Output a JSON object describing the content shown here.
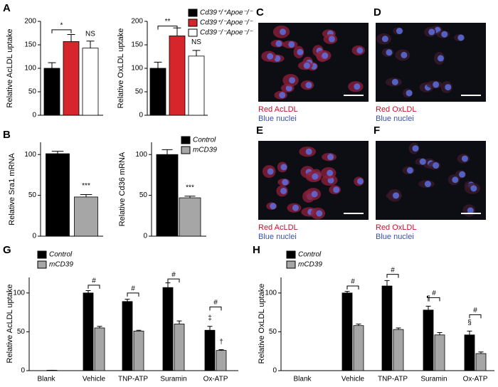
{
  "panel_labels": [
    "A",
    "B",
    "G",
    "H"
  ],
  "images": [
    {
      "label": "C",
      "lines": [
        "Red AcLDL",
        "Blue nuclei"
      ]
    },
    {
      "label": "D",
      "lines": [
        "Red OxLDL",
        "Blue nuclei"
      ]
    },
    {
      "label": "E",
      "lines": [
        "Red AcLDL",
        "Blue nuclei"
      ]
    },
    {
      "label": "F",
      "lines": [
        "Red OxLDL",
        "Blue nuclei"
      ]
    }
  ],
  "chart_data": [
    {
      "type": "bar",
      "ylabel": "Relative AcLDL uptake",
      "categories": [
        null
      ],
      "ylim": [
        0,
        200
      ],
      "yticks": [
        0,
        50,
        100,
        150,
        200
      ],
      "series": [
        {
          "color": "#000000",
          "values": [
            100
          ],
          "errors": [
            12
          ]
        },
        {
          "color": "#d7262b",
          "values": [
            157
          ],
          "errors": [
            15
          ]
        },
        {
          "color": "#ffffff",
          "values": [
            143
          ],
          "errors": [
            15
          ]
        }
      ],
      "annotations": [
        "*",
        "NS"
      ]
    },
    {
      "type": "bar",
      "ylabel": "Relative OxLDL uptake",
      "categories": [
        null
      ],
      "ylim": [
        0,
        200
      ],
      "yticks": [
        0,
        50,
        100,
        150,
        200
      ],
      "series": [
        {
          "name": "Cd39⁺/⁺Apoe⁻/⁻",
          "color": "#000000",
          "values": [
            100
          ],
          "errors": [
            13
          ]
        },
        {
          "name": "Cd39⁺/⁻Apoe⁻/⁻",
          "color": "#d7262b",
          "values": [
            169
          ],
          "errors": [
            17
          ]
        },
        {
          "name": "Cd39⁻/⁻Apoe⁻/⁻",
          "color": "#ffffff",
          "values": [
            126
          ],
          "errors": [
            12
          ]
        }
      ],
      "annotations": [
        "**",
        "NS"
      ]
    },
    {
      "type": "bar",
      "ylabel": "Relative Sra1 mRNA",
      "categories": [
        null
      ],
      "ylim": [
        0,
        115
      ],
      "yticks": [
        0,
        50,
        100
      ],
      "series": [
        {
          "color": "#000000",
          "values": [
            101
          ],
          "errors": [
            3
          ]
        },
        {
          "color": "#a6a6a6",
          "values": [
            48
          ],
          "errors": [
            3
          ]
        }
      ],
      "annotations": [
        "***"
      ]
    },
    {
      "type": "bar",
      "ylabel": "Relative Cd36 mRNA",
      "categories": [
        null
      ],
      "ylim": [
        0,
        115
      ],
      "yticks": [
        0,
        50,
        100
      ],
      "series": [
        {
          "name": "Control",
          "color": "#000000",
          "values": [
            100
          ],
          "errors": [
            6
          ]
        },
        {
          "name": "mCD39",
          "color": "#a6a6a6",
          "values": [
            47
          ],
          "errors": [
            2
          ]
        }
      ],
      "annotations": [
        "***"
      ]
    },
    {
      "type": "bar",
      "ylabel": "Relative AcLDL uptake",
      "categories": [
        "Blank",
        "Vehicle",
        "TNP-ATP",
        "Suramin",
        "Ox-ATP"
      ],
      "ylim": [
        0,
        120
      ],
      "yticks": [
        0,
        50,
        100
      ],
      "series": [
        {
          "name": "Control",
          "color": "#000000",
          "values": [
            0,
            100,
            89,
            107,
            52
          ],
          "errors": [
            0,
            3,
            3,
            6,
            5
          ]
        },
        {
          "name": "mCD39",
          "color": "#a6a6a6",
          "values": [
            0.5,
            55,
            51,
            60,
            26
          ],
          "errors": [
            0,
            2,
            1,
            4,
            1
          ]
        }
      ],
      "annotations": [
        "#",
        "#",
        "#",
        "#",
        "‡",
        "†"
      ]
    },
    {
      "type": "bar",
      "ylabel": "Relative OxLDL uptake",
      "categories": [
        "Blank",
        "Vehicle",
        "TNP-ATP",
        "Suramin",
        "Ox-ATP"
      ],
      "ylim": [
        0,
        120
      ],
      "yticks": [
        0,
        50,
        100
      ],
      "series": [
        {
          "name": "Control",
          "color": "#000000",
          "values": [
            0,
            100,
            109,
            78,
            46
          ],
          "errors": [
            0,
            2,
            7,
            5,
            5
          ]
        },
        {
          "name": "mCD39",
          "color": "#a6a6a6",
          "values": [
            0,
            58,
            53,
            46,
            22
          ],
          "errors": [
            0,
            2,
            2,
            3,
            2
          ]
        }
      ],
      "annotations": [
        "#",
        "#",
        "#",
        "#",
        "¶",
        "§"
      ]
    }
  ]
}
